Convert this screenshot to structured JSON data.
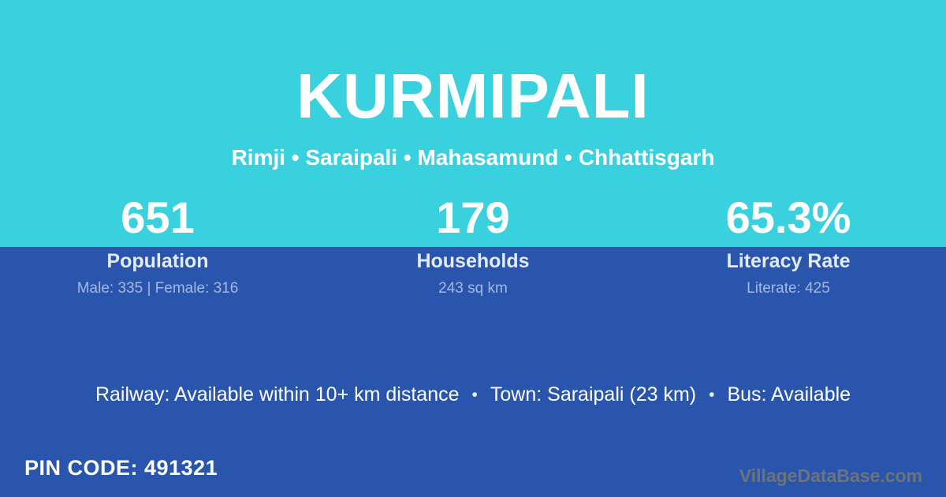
{
  "colors": {
    "teal_background": "#3ad1de",
    "blue_background": "#2a55ac",
    "title_text": "#ffffff",
    "stat_label_text": "#e4eaf8",
    "stat_detail_text": "#a5b7e4",
    "watermark_text": "#6e7379"
  },
  "header": {
    "title": "KURMIPALI",
    "subtitle": "Rimji • Saraipali • Mahasamund • Chhattisgarh"
  },
  "stats": [
    {
      "value": "651",
      "label": "Population",
      "detail": "Male: 335 | Female: 316"
    },
    {
      "value": "179",
      "label": "Households",
      "detail": "243 sq km"
    },
    {
      "value": "65.3%",
      "label": "Literacy Rate",
      "detail": "Literate: 425"
    }
  ],
  "info": {
    "separator": "•",
    "items": [
      "Railway: Available within 10+ km distance",
      "Town: Saraipali (23 km)",
      "Bus: Available"
    ]
  },
  "footer": {
    "pin_label": "PIN CODE:",
    "pin_value": "491321",
    "watermark": "VillageDataBase.com"
  }
}
